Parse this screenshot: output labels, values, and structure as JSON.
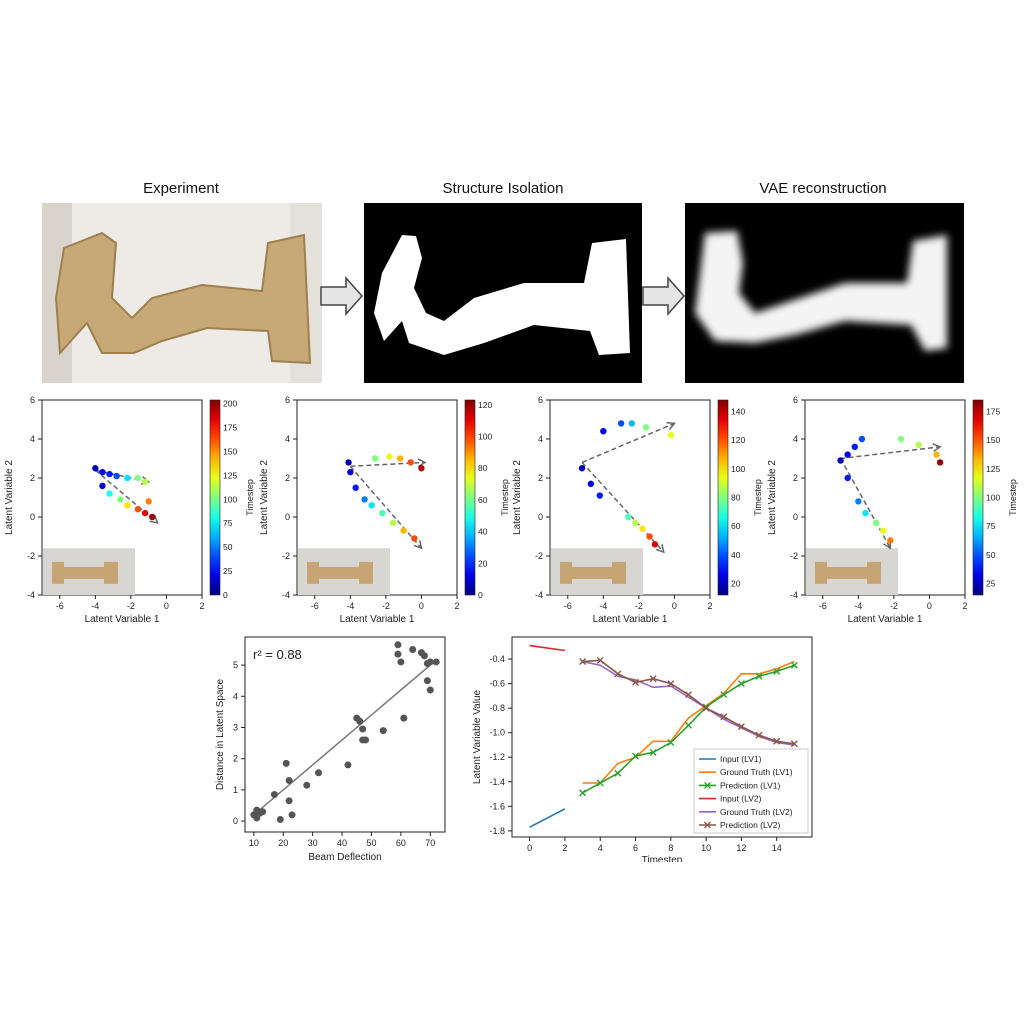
{
  "top_row": {
    "titles": [
      "Experiment",
      "Structure Isolation",
      "VAE reconstruction"
    ]
  },
  "latent_plots": {
    "xlabel": "Latent Variable 1",
    "ylabel": "Latent Variable 2",
    "colorbar_label": "Timestep",
    "x_ticks": [
      "-6",
      "-4",
      "-2",
      "0",
      "2"
    ],
    "y_ticks": [
      "6",
      "4",
      "2",
      "0",
      "-2",
      "-4"
    ],
    "colorbar_ticks": [
      [
        "0",
        "25",
        "50",
        "75",
        "100",
        "125",
        "150",
        "175",
        "200"
      ],
      [
        "0",
        "20",
        "40",
        "60",
        "80",
        "100",
        "120"
      ],
      [
        "20",
        "40",
        "60",
        "80",
        "100",
        "120",
        "140"
      ],
      [
        "25",
        "50",
        "75",
        "100",
        "125",
        "150",
        "175"
      ]
    ]
  },
  "chart_data": [
    {
      "type": "scatter",
      "xlabel": "Beam Deflection",
      "ylabel": "Distance in Latent Space",
      "annotation": "r² = 0.88",
      "xlim": [
        7,
        75
      ],
      "ylim": [
        -0.35,
        5.9
      ],
      "x_ticks": [
        10,
        20,
        30,
        40,
        50,
        60,
        70
      ],
      "y_ticks": [
        0,
        1,
        2,
        3,
        4,
        5
      ],
      "points": [
        [
          10,
          0.2
        ],
        [
          11,
          0.1
        ],
        [
          11,
          0.35
        ],
        [
          12,
          0.25
        ],
        [
          13,
          0.3
        ],
        [
          17,
          0.85
        ],
        [
          19,
          0.05
        ],
        [
          21,
          1.85
        ],
        [
          22,
          1.3
        ],
        [
          22,
          0.65
        ],
        [
          23,
          0.2
        ],
        [
          28,
          1.15
        ],
        [
          32,
          1.55
        ],
        [
          42,
          1.8
        ],
        [
          45,
          3.3
        ],
        [
          46,
          3.2
        ],
        [
          47,
          2.95
        ],
        [
          47,
          2.6
        ],
        [
          48,
          2.6
        ],
        [
          54,
          2.9
        ],
        [
          59,
          5.65
        ],
        [
          59,
          5.35
        ],
        [
          60,
          5.1
        ],
        [
          61,
          3.3
        ],
        [
          64,
          5.5
        ],
        [
          67,
          5.4
        ],
        [
          68,
          5.3
        ],
        [
          69,
          4.5
        ],
        [
          69,
          5.05
        ],
        [
          70,
          4.2
        ],
        [
          70,
          5.1
        ],
        [
          72,
          5.1
        ]
      ],
      "fit": [
        [
          10,
          0.2
        ],
        [
          70,
          5.0
        ]
      ]
    },
    {
      "type": "line",
      "xlabel": "Timestep",
      "ylabel": "Latent Variable Value",
      "xlim": [
        -1,
        16
      ],
      "ylim": [
        -1.85,
        -0.22
      ],
      "x_ticks": [
        0,
        2,
        4,
        6,
        8,
        10,
        12,
        14
      ],
      "y_ticks": [
        -0.4,
        -0.6,
        -0.8,
        -1.0,
        -1.2,
        -1.4,
        -1.6,
        -1.8
      ],
      "series": [
        {
          "name": "Input (LV1)",
          "color": "#1f77b4",
          "marker": "none",
          "x": [
            0,
            2
          ],
          "y": [
            -1.77,
            -1.62
          ]
        },
        {
          "name": "Ground Truth (LV1)",
          "color": "#ff7f0e",
          "marker": "none",
          "x": [
            3,
            4,
            5,
            6,
            7,
            8,
            9,
            10,
            11,
            12,
            13,
            14,
            15
          ],
          "y": [
            -1.41,
            -1.41,
            -1.25,
            -1.2,
            -1.07,
            -1.07,
            -0.88,
            -0.78,
            -0.68,
            -0.52,
            -0.52,
            -0.48,
            -0.42
          ]
        },
        {
          "name": "Prediction (LV1)",
          "color": "#2ca02c",
          "marker": "x",
          "x": [
            3,
            4,
            5,
            6,
            7,
            8,
            9,
            10,
            11,
            12,
            13,
            14,
            15
          ],
          "y": [
            -1.49,
            -1.41,
            -1.33,
            -1.19,
            -1.16,
            -1.08,
            -0.94,
            -0.79,
            -0.69,
            -0.6,
            -0.54,
            -0.5,
            -0.45
          ]
        },
        {
          "name": "Input (LV2)",
          "color": "#d62728",
          "marker": "none",
          "x": [
            0,
            2
          ],
          "y": [
            -0.29,
            -0.33
          ]
        },
        {
          "name": "Ground Truth (LV2)",
          "color": "#9467bd",
          "marker": "none",
          "x": [
            3,
            4,
            5,
            6,
            7,
            8,
            9,
            10,
            11,
            12,
            13,
            14,
            15
          ],
          "y": [
            -0.42,
            -0.45,
            -0.54,
            -0.57,
            -0.63,
            -0.62,
            -0.71,
            -0.8,
            -0.89,
            -0.96,
            -1.03,
            -1.08,
            -1.1
          ]
        },
        {
          "name": "Prediction (LV2)",
          "color": "#8c564b",
          "marker": "x",
          "x": [
            3,
            4,
            5,
            6,
            7,
            8,
            9,
            10,
            11,
            12,
            13,
            14,
            15
          ],
          "y": [
            -0.42,
            -0.41,
            -0.52,
            -0.59,
            -0.56,
            -0.6,
            -0.69,
            -0.8,
            -0.87,
            -0.95,
            -1.02,
            -1.07,
            -1.09
          ]
        }
      ],
      "legend_position": "lower-right"
    }
  ]
}
